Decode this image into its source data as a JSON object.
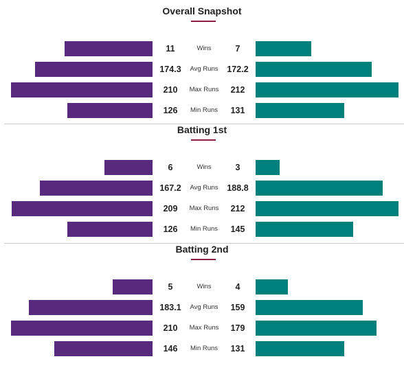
{
  "colors": {
    "left": "#572a7e",
    "right": "#00807d",
    "accent": "#8a1f3f"
  },
  "chart_data": {
    "type": "bar",
    "sections": [
      {
        "title": "Overall Snapshot",
        "rows": [
          {
            "metric": "Wins",
            "left": 11,
            "right": 7
          },
          {
            "metric": "Avg Runs",
            "left": 174.3,
            "right": 172.2
          },
          {
            "metric": "Max Runs",
            "left": 210,
            "right": 212
          },
          {
            "metric": "Min Runs",
            "left": 126,
            "right": 131
          }
        ]
      },
      {
        "title": "Batting 1st",
        "rows": [
          {
            "metric": "Wins",
            "left": 6,
            "right": 3
          },
          {
            "metric": "Avg Runs",
            "left": 167.2,
            "right": 188.8
          },
          {
            "metric": "Max Runs",
            "left": 209,
            "right": 212
          },
          {
            "metric": "Min Runs",
            "left": 126,
            "right": 145
          }
        ]
      },
      {
        "title": "Batting 2nd",
        "rows": [
          {
            "metric": "Wins",
            "left": 5,
            "right": 4
          },
          {
            "metric": "Avg Runs",
            "left": 183.1,
            "right": 159
          },
          {
            "metric": "Max Runs",
            "left": 210,
            "right": 179
          },
          {
            "metric": "Min Runs",
            "left": 146,
            "right": 131
          }
        ]
      }
    ]
  }
}
